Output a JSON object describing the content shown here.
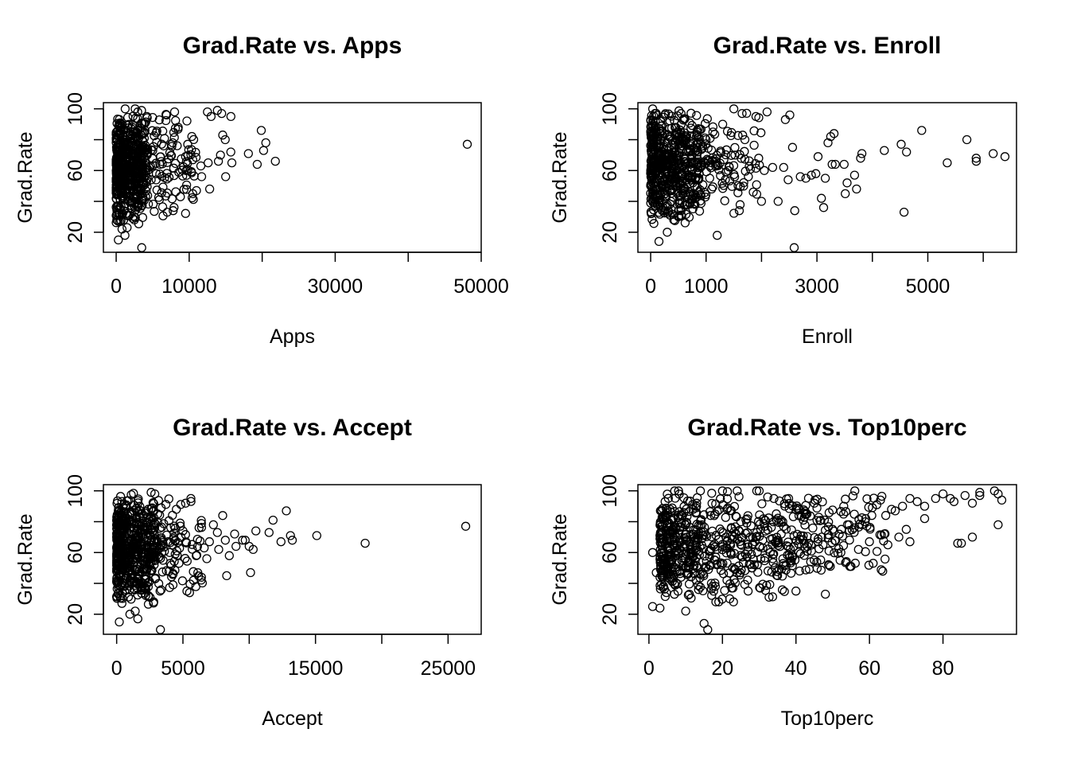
{
  "chart_data": [
    {
      "type": "scatter",
      "title": "Grad.Rate vs. Apps",
      "xlabel": "Apps",
      "ylabel": "Grad.Rate",
      "xticks": [
        0,
        10000,
        20000,
        30000,
        40000,
        50000
      ],
      "xtick_labels": [
        "0",
        "10000",
        "",
        "30000",
        "",
        "50000"
      ],
      "yticks": [
        20,
        40,
        60,
        80,
        100
      ],
      "ytick_labels": [
        "20",
        "",
        "60",
        "",
        "100"
      ],
      "xlim": [
        -1750,
        50000
      ],
      "ylim": [
        7,
        104
      ],
      "grid": false,
      "points": [
        [
          48094,
          77
        ],
        [
          21804,
          66
        ],
        [
          19873,
          86
        ],
        [
          20192,
          73
        ],
        [
          20500,
          78
        ],
        [
          19315,
          64
        ],
        [
          18114,
          71
        ],
        [
          15712,
          95
        ],
        [
          15849,
          65
        ],
        [
          14596,
          83
        ],
        [
          14446,
          97
        ],
        [
          14000,
          66
        ],
        [
          14292,
          70
        ],
        [
          14939,
          80
        ],
        [
          15700,
          72
        ],
        [
          15000,
          56
        ],
        [
          13865,
          99
        ],
        [
          13000,
          95
        ],
        [
          12500,
          98
        ],
        [
          11000,
          47
        ],
        [
          12800,
          48
        ],
        [
          10500,
          45
        ],
        [
          11700,
          56
        ],
        [
          12600,
          65
        ],
        [
          11600,
          63
        ],
        [
          9500,
          69
        ],
        [
          9800,
          77
        ],
        [
          10500,
          67
        ],
        [
          8000,
          98
        ],
        [
          8500,
          88
        ],
        [
          7800,
          34
        ],
        [
          8800,
          43
        ],
        [
          7000,
          33
        ],
        [
          6900,
          96
        ],
        [
          6500,
          76
        ],
        [
          6000,
          64
        ],
        [
          5500,
          58
        ],
        [
          5000,
          73
        ],
        [
          4800,
          54
        ],
        [
          4500,
          62
        ],
        [
          4200,
          95
        ],
        [
          3600,
          42
        ],
        [
          3500,
          10
        ],
        [
          3200,
          58
        ],
        [
          3000,
          72
        ],
        [
          2800,
          85
        ],
        [
          2600,
          100
        ],
        [
          2500,
          28
        ],
        [
          2200,
          54
        ],
        [
          2000,
          67
        ],
        [
          1800,
          31
        ],
        [
          1500,
          23
        ],
        [
          1200,
          18
        ],
        [
          1000,
          45
        ],
        [
          800,
          22
        ],
        [
          500,
          35
        ],
        [
          300,
          15
        ],
        [
          200,
          60
        ],
        [
          600,
          90
        ],
        [
          900,
          75
        ]
      ],
      "dense_clusters": [
        {
          "x_range": [
            0,
            4000
          ],
          "y_range": [
            25,
            100
          ],
          "count": 520
        },
        {
          "x_range": [
            4000,
            11000
          ],
          "y_range": [
            30,
            100
          ],
          "count": 110
        }
      ]
    },
    {
      "type": "scatter",
      "title": "Grad.Rate vs. Enroll",
      "xlabel": "Enroll",
      "ylabel": "Grad.Rate",
      "xticks": [
        0,
        1000,
        2000,
        3000,
        4000,
        5000,
        6000
      ],
      "xtick_labels": [
        "0",
        "1000",
        "",
        "3000",
        "",
        "5000",
        ""
      ],
      "yticks": [
        20,
        40,
        60,
        80,
        100
      ],
      "ytick_labels": [
        "20",
        "",
        "60",
        "",
        "100"
      ],
      "xlim": [
        -230,
        6600
      ],
      "ylim": [
        7,
        104
      ],
      "grid": false,
      "points": [
        [
          6392,
          69
        ],
        [
          6180,
          71
        ],
        [
          5873,
          68
        ],
        [
          5874,
          66
        ],
        [
          5705,
          80
        ],
        [
          5350,
          65
        ],
        [
          4890,
          86
        ],
        [
          4615,
          72
        ],
        [
          4520,
          77
        ],
        [
          4571,
          33
        ],
        [
          4215,
          73
        ],
        [
          3810,
          71
        ],
        [
          3788,
          68
        ],
        [
          3715,
          48
        ],
        [
          3678,
          57
        ],
        [
          3544,
          52
        ],
        [
          3510,
          45
        ],
        [
          3490,
          64
        ],
        [
          3331,
          64
        ],
        [
          3308,
          84
        ],
        [
          3274,
          64
        ],
        [
          3248,
          82
        ],
        [
          3200,
          78
        ],
        [
          3150,
          55
        ],
        [
          3120,
          36
        ],
        [
          3080,
          42
        ],
        [
          3020,
          69
        ],
        [
          2980,
          58
        ],
        [
          2900,
          57
        ],
        [
          2800,
          55
        ],
        [
          2700,
          56
        ],
        [
          2600,
          34
        ],
        [
          2560,
          75
        ],
        [
          2510,
          96
        ],
        [
          2480,
          54
        ],
        [
          2430,
          93
        ],
        [
          2400,
          62
        ],
        [
          2300,
          40
        ],
        [
          2200,
          62
        ],
        [
          2100,
          98
        ],
        [
          2050,
          60
        ],
        [
          2000,
          40
        ],
        [
          1950,
          68
        ],
        [
          1900,
          95
        ],
        [
          1850,
          46
        ],
        [
          1700,
          80
        ],
        [
          1650,
          97
        ],
        [
          1600,
          34
        ],
        [
          1500,
          100
        ],
        [
          1400,
          60
        ],
        [
          1300,
          90
        ],
        [
          1200,
          18
        ],
        [
          1100,
          48
        ],
        [
          900,
          77
        ],
        [
          800,
          38
        ],
        [
          700,
          46
        ],
        [
          500,
          30
        ],
        [
          300,
          20
        ],
        [
          150,
          14
        ],
        [
          2590,
          10
        ]
      ],
      "dense_clusters": [
        {
          "x_range": [
            0,
            900
          ],
          "y_range": [
            25,
            100
          ],
          "count": 540
        },
        {
          "x_range": [
            900,
            2000
          ],
          "y_range": [
            30,
            100
          ],
          "count": 100
        }
      ]
    },
    {
      "type": "scatter",
      "title": "Grad.Rate vs. Accept",
      "xlabel": "Accept",
      "ylabel": "Grad.Rate",
      "xticks": [
        0,
        5000,
        10000,
        15000,
        20000,
        25000
      ],
      "xtick_labels": [
        "0",
        "5000",
        "",
        "15000",
        "",
        "25000"
      ],
      "yticks": [
        20,
        40,
        60,
        80,
        100
      ],
      "ytick_labels": [
        "20",
        "",
        "60",
        "",
        "100"
      ],
      "xlim": [
        -1000,
        27500
      ],
      "ylim": [
        7,
        104
      ],
      "grid": false,
      "points": [
        [
          26330,
          77
        ],
        [
          18744,
          66
        ],
        [
          15096,
          71
        ],
        [
          13110,
          71
        ],
        [
          13250,
          68
        ],
        [
          12800,
          87
        ],
        [
          12400,
          67
        ],
        [
          11800,
          81
        ],
        [
          11500,
          73
        ],
        [
          10500,
          74
        ],
        [
          10300,
          62
        ],
        [
          10000,
          64
        ],
        [
          10100,
          47
        ],
        [
          9700,
          68
        ],
        [
          9500,
          68
        ],
        [
          9000,
          64
        ],
        [
          8900,
          72
        ],
        [
          8200,
          68
        ],
        [
          8500,
          58
        ],
        [
          8300,
          45
        ],
        [
          8000,
          84
        ],
        [
          7700,
          62
        ],
        [
          7600,
          73
        ],
        [
          7300,
          78
        ],
        [
          7000,
          67
        ],
        [
          6800,
          56
        ],
        [
          6600,
          63
        ],
        [
          6400,
          44
        ],
        [
          6000,
          58
        ],
        [
          5800,
          42
        ],
        [
          5600,
          95
        ],
        [
          5500,
          34
        ],
        [
          5300,
          35
        ],
        [
          5200,
          92
        ],
        [
          5000,
          74
        ],
        [
          4700,
          53
        ],
        [
          4500,
          88
        ],
        [
          4300,
          69
        ],
        [
          4000,
          60
        ],
        [
          3500,
          55
        ],
        [
          3300,
          10
        ],
        [
          3100,
          85
        ],
        [
          2800,
          28
        ],
        [
          2600,
          99
        ],
        [
          2400,
          32
        ],
        [
          2200,
          45
        ],
        [
          2000,
          60
        ],
        [
          1800,
          77
        ],
        [
          1600,
          17
        ],
        [
          1400,
          22
        ],
        [
          1200,
          55
        ],
        [
          1000,
          20
        ],
        [
          800,
          60
        ],
        [
          600,
          35
        ],
        [
          400,
          27
        ],
        [
          200,
          15
        ],
        [
          700,
          90
        ],
        [
          1500,
          40
        ],
        [
          300,
          67
        ],
        [
          900,
          80
        ]
      ],
      "dense_clusters": [
        {
          "x_range": [
            0,
            2800
          ],
          "y_range": [
            25,
            100
          ],
          "count": 520
        },
        {
          "x_range": [
            2800,
            6500
          ],
          "y_range": [
            30,
            100
          ],
          "count": 110
        }
      ]
    },
    {
      "type": "scatter",
      "title": "Grad.Rate vs. Top10perc",
      "xlabel": "Top10perc",
      "ylabel": "Grad.Rate",
      "xticks": [
        0,
        20,
        40,
        60,
        80
      ],
      "xtick_labels": [
        "0",
        "20",
        "40",
        "60",
        "80"
      ],
      "yticks": [
        20,
        40,
        60,
        80,
        100
      ],
      "ytick_labels": [
        "20",
        "",
        "60",
        "",
        "100"
      ],
      "xlim": [
        -3,
        100
      ],
      "ylim": [
        7,
        104
      ],
      "grid": false,
      "points": [
        [
          95,
          98
        ],
        [
          95,
          78
        ],
        [
          96,
          94
        ],
        [
          94,
          100
        ],
        [
          90,
          99
        ],
        [
          90,
          97
        ],
        [
          88,
          92
        ],
        [
          86,
          97
        ],
        [
          85,
          66
        ],
        [
          84,
          66
        ],
        [
          88,
          70
        ],
        [
          83,
          93
        ],
        [
          82,
          95
        ],
        [
          80,
          98
        ],
        [
          78,
          95
        ],
        [
          75,
          90
        ],
        [
          75,
          82
        ],
        [
          73,
          93
        ],
        [
          71,
          95
        ],
        [
          70,
          75
        ],
        [
          71,
          67
        ],
        [
          69,
          90
        ],
        [
          68,
          70
        ],
        [
          66,
          88
        ],
        [
          65,
          65
        ],
        [
          63,
          94
        ],
        [
          62,
          91
        ],
        [
          60,
          67
        ],
        [
          58,
          78
        ],
        [
          57,
          62
        ],
        [
          56,
          100
        ],
        [
          55,
          51
        ],
        [
          53,
          90
        ],
        [
          50,
          75
        ],
        [
          48,
          33
        ],
        [
          46,
          67
        ],
        [
          45,
          92
        ],
        [
          44,
          54
        ],
        [
          42,
          81
        ],
        [
          40,
          35
        ],
        [
          38,
          95
        ],
        [
          35,
          45
        ],
        [
          33,
          60
        ],
        [
          30,
          100
        ],
        [
          28,
          50
        ],
        [
          25,
          80
        ],
        [
          22,
          30
        ],
        [
          20,
          100
        ],
        [
          18,
          55
        ],
        [
          16,
          10
        ],
        [
          15,
          14
        ],
        [
          14,
          100
        ],
        [
          12,
          88
        ],
        [
          10,
          50
        ],
        [
          10,
          22
        ],
        [
          8,
          60
        ],
        [
          7,
          100
        ],
        [
          5,
          44
        ],
        [
          3,
          24
        ],
        [
          2,
          47
        ],
        [
          1,
          60
        ],
        [
          1,
          25
        ],
        [
          4,
          56
        ],
        [
          6,
          74
        ],
        [
          9,
          84
        ],
        [
          11,
          33
        ],
        [
          13,
          92
        ],
        [
          17,
          40
        ],
        [
          19,
          28
        ],
        [
          24,
          100
        ],
        [
          27,
          35
        ],
        [
          31,
          63
        ],
        [
          34,
          95
        ],
        [
          36,
          72
        ],
        [
          39,
          58
        ],
        [
          41,
          48
        ],
        [
          43,
          85
        ],
        [
          47,
          70
        ],
        [
          49,
          61
        ],
        [
          52,
          55
        ],
        [
          54,
          78
        ],
        [
          59,
          82
        ],
        [
          61,
          53
        ],
        [
          64,
          72
        ],
        [
          67,
          87
        ]
      ],
      "dense_clusters": [
        {
          "x_range": [
            3,
            40
          ],
          "y_range": [
            28,
            100
          ],
          "count": 560
        },
        {
          "x_range": [
            40,
            65
          ],
          "y_range": [
            40,
            100
          ],
          "count": 120
        }
      ]
    }
  ]
}
